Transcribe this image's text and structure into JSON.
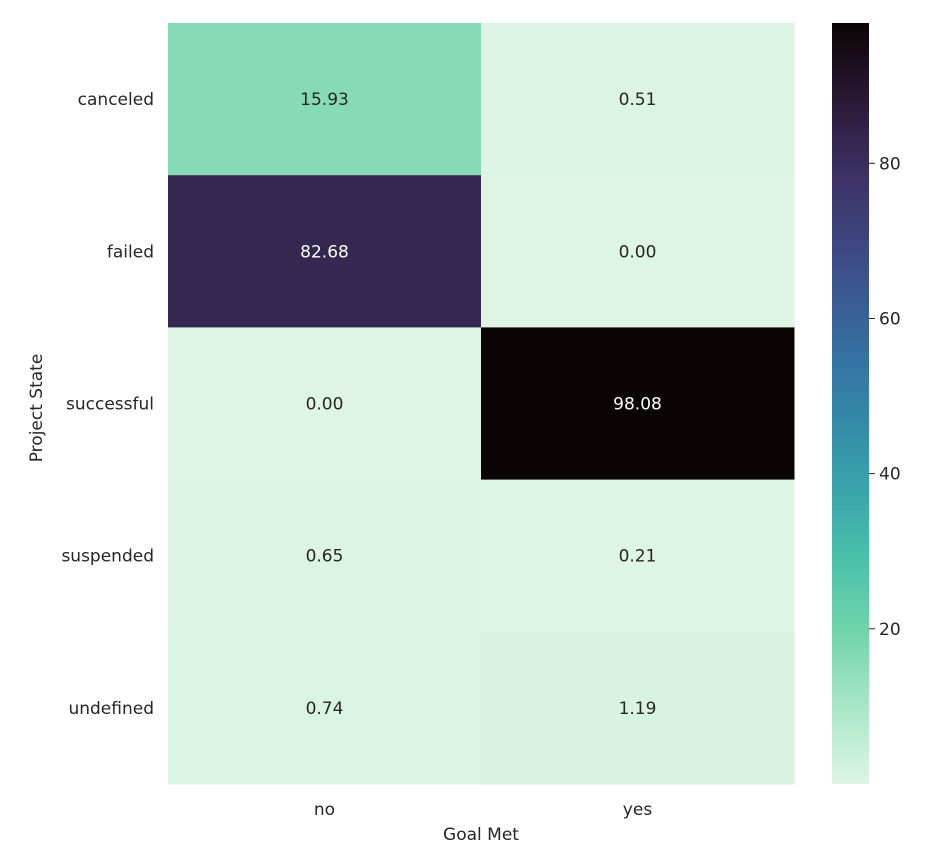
{
  "chart_data": {
    "type": "heatmap",
    "xlabel": "Goal Met",
    "ylabel": "Project State",
    "x_categories": [
      "no",
      "yes"
    ],
    "y_categories": [
      "canceled",
      "failed",
      "successful",
      "suspended",
      "undefined"
    ],
    "values": [
      [
        15.93,
        0.51
      ],
      [
        82.68,
        0.0
      ],
      [
        0.0,
        98.08
      ],
      [
        0.65,
        0.21
      ],
      [
        0.74,
        1.19
      ]
    ],
    "value_labels": [
      [
        "15.93",
        "0.51"
      ],
      [
        "82.68",
        "0.00"
      ],
      [
        "0.00",
        "98.08"
      ],
      [
        "0.65",
        "0.21"
      ],
      [
        "0.74",
        "1.19"
      ]
    ],
    "colorbar": {
      "range": [
        0,
        98.08
      ],
      "ticks": [
        20,
        40,
        60,
        80
      ],
      "tick_labels": [
        "20",
        "40",
        "60",
        "80"
      ],
      "colormap": "mako_r"
    },
    "grid": false
  }
}
